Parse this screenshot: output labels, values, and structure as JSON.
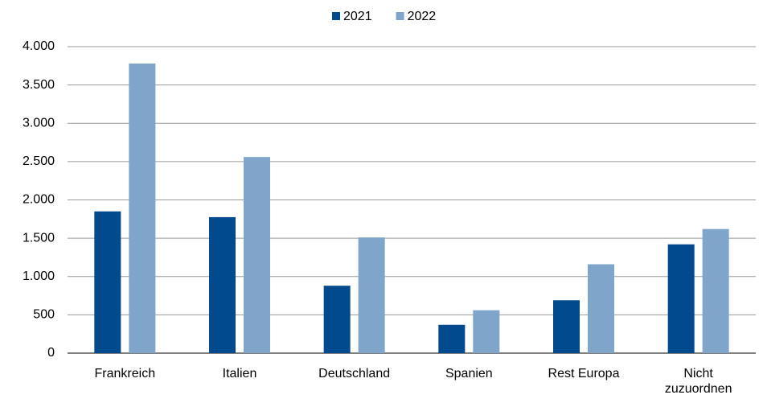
{
  "chart_data": {
    "type": "bar",
    "categories": [
      "Frankreich",
      "Italien",
      "Deutschland",
      "Spanien",
      "Rest Europa",
      "Nicht zuzuordnen"
    ],
    "series": [
      {
        "name": "2021",
        "color": "#004a8d",
        "values": [
          1850,
          1775,
          880,
          370,
          690,
          1420
        ]
      },
      {
        "name": "2022",
        "color": "#7fa6ca",
        "values": [
          3780,
          2560,
          1510,
          560,
          1160,
          1620
        ]
      }
    ],
    "ylim": [
      0,
      4000
    ],
    "yticks": [
      0,
      500,
      {
        "value": 1000,
        "label": "1.000"
      },
      {
        "value": 1500,
        "label": "1.500"
      },
      {
        "value": 2000,
        "label": "2.000"
      },
      {
        "value": 2500,
        "label": "2.500"
      },
      {
        "value": 3000,
        "label": "3.000"
      },
      {
        "value": 3500,
        "label": "3.500"
      },
      {
        "value": 4000,
        "label": "4.000"
      }
    ],
    "grid": true,
    "legend": "top"
  }
}
